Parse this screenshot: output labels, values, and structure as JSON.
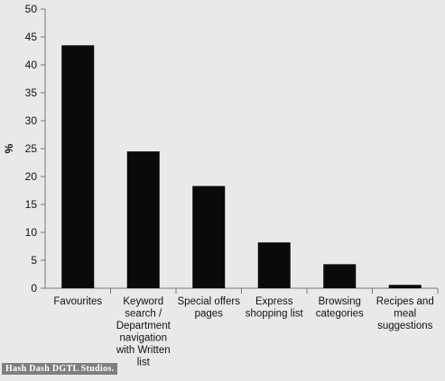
{
  "chart_data": {
    "type": "bar",
    "ylabel": "%",
    "ylim": [
      0,
      50
    ],
    "yticks": [
      0,
      5,
      10,
      15,
      20,
      25,
      30,
      35,
      40,
      45,
      50
    ],
    "categories": [
      [
        "Favourites"
      ],
      [
        "Keyword",
        "search /",
        "Department",
        "navigation",
        "with Written",
        "list"
      ],
      [
        "Special offers",
        "pages"
      ],
      [
        "Express",
        "shopping list"
      ],
      [
        "Browsing",
        "categories"
      ],
      [
        "Recipes and",
        "meal",
        "suggestions"
      ]
    ],
    "values": [
      43.5,
      24.5,
      18.3,
      8.2,
      4.3,
      0.6
    ],
    "grid": false,
    "bar_color": "#0a0a0a",
    "axis_color": "#777777"
  },
  "watermark": "Hash Dash DGTL Studios."
}
